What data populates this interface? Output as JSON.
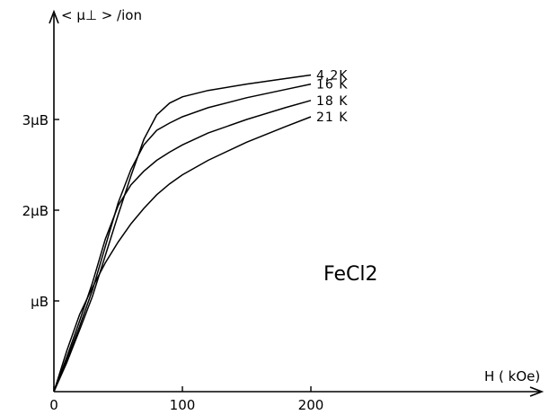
{
  "chart_data": {
    "type": "line",
    "title": "",
    "xlabel": "H ( kOe)",
    "ylabel": "< μ⊥ > /ion",
    "xlim": [
      0,
      220
    ],
    "ylim": [
      0,
      3.95
    ],
    "x_ticks": [
      {
        "value": 0,
        "label": "0"
      },
      {
        "value": 100,
        "label": "100"
      },
      {
        "value": 200,
        "label": "200"
      }
    ],
    "y_ticks": [
      {
        "value": 1,
        "label": "μB"
      },
      {
        "value": 2,
        "label": "2μB"
      },
      {
        "value": 3,
        "label": "3μB"
      }
    ],
    "annotation": "FeCl2",
    "series": [
      {
        "name": "4,2K",
        "x": [
          0,
          10,
          20,
          30,
          40,
          50,
          60,
          70,
          80,
          90,
          100,
          120,
          150,
          180,
          200
        ],
        "y": [
          0,
          0.32,
          0.68,
          1.05,
          1.5,
          1.95,
          2.38,
          2.78,
          3.05,
          3.18,
          3.25,
          3.32,
          3.39,
          3.45,
          3.49
        ]
      },
      {
        "name": "16 K",
        "x": [
          0,
          10,
          20,
          30,
          40,
          50,
          60,
          70,
          80,
          90,
          100,
          120,
          150,
          180,
          200
        ],
        "y": [
          0,
          0.35,
          0.72,
          1.12,
          1.6,
          2.08,
          2.45,
          2.72,
          2.88,
          2.96,
          3.03,
          3.13,
          3.24,
          3.33,
          3.39
        ]
      },
      {
        "name": "18 K",
        "x": [
          0,
          10,
          20,
          30,
          40,
          50,
          60,
          70,
          80,
          90,
          100,
          120,
          150,
          180,
          200
        ],
        "y": [
          0,
          0.38,
          0.78,
          1.2,
          1.68,
          2.05,
          2.28,
          2.43,
          2.55,
          2.64,
          2.72,
          2.85,
          3.0,
          3.13,
          3.21
        ]
      },
      {
        "name": "21 K",
        "x": [
          0,
          10,
          20,
          30,
          40,
          50,
          60,
          70,
          80,
          90,
          100,
          120,
          150,
          180,
          200
        ],
        "y": [
          0,
          0.45,
          0.85,
          1.15,
          1.42,
          1.65,
          1.85,
          2.02,
          2.17,
          2.29,
          2.39,
          2.55,
          2.75,
          2.92,
          3.03
        ]
      }
    ]
  }
}
